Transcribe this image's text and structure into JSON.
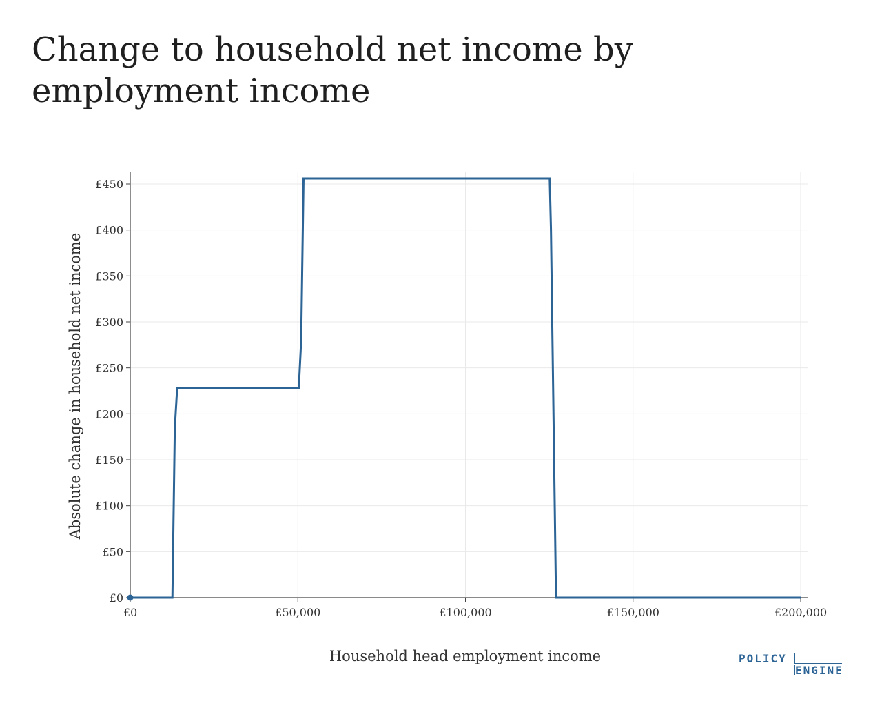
{
  "title": "Change to household net income by employment income",
  "logo": {
    "line1": "POLICY",
    "line2": "ENGINE",
    "color": "#2c6496"
  },
  "chart_data": {
    "type": "line",
    "xlabel": "Household head employment income",
    "ylabel": "Absolute change in household net income",
    "xlim": [
      0,
      200000
    ],
    "ylim": [
      0,
      456
    ],
    "x_ticks": [
      {
        "value": 0,
        "label": "£0"
      },
      {
        "value": 50000,
        "label": "£50,000"
      },
      {
        "value": 100000,
        "label": "£100,000"
      },
      {
        "value": 150000,
        "label": "£150,000"
      },
      {
        "value": 200000,
        "label": "£200,000"
      }
    ],
    "y_ticks": [
      {
        "value": 0,
        "label": "£0"
      },
      {
        "value": 50,
        "label": "£50"
      },
      {
        "value": 100,
        "label": "£100"
      },
      {
        "value": 150,
        "label": "£150"
      },
      {
        "value": 200,
        "label": "£200"
      },
      {
        "value": 250,
        "label": "£250"
      },
      {
        "value": 300,
        "label": "£300"
      },
      {
        "value": 350,
        "label": "£350"
      },
      {
        "value": 400,
        "label": "£400"
      },
      {
        "value": 450,
        "label": "£450"
      }
    ],
    "grid": true,
    "line_color": "#2c6496",
    "series": [
      {
        "x": [
          0,
          12570,
          13300,
          14000,
          50270,
          51000,
          51700,
          125140,
          125500,
          127000,
          200000
        ],
        "y": [
          0,
          0,
          185,
          228,
          228,
          280,
          456,
          456,
          400,
          0,
          0
        ]
      }
    ]
  }
}
